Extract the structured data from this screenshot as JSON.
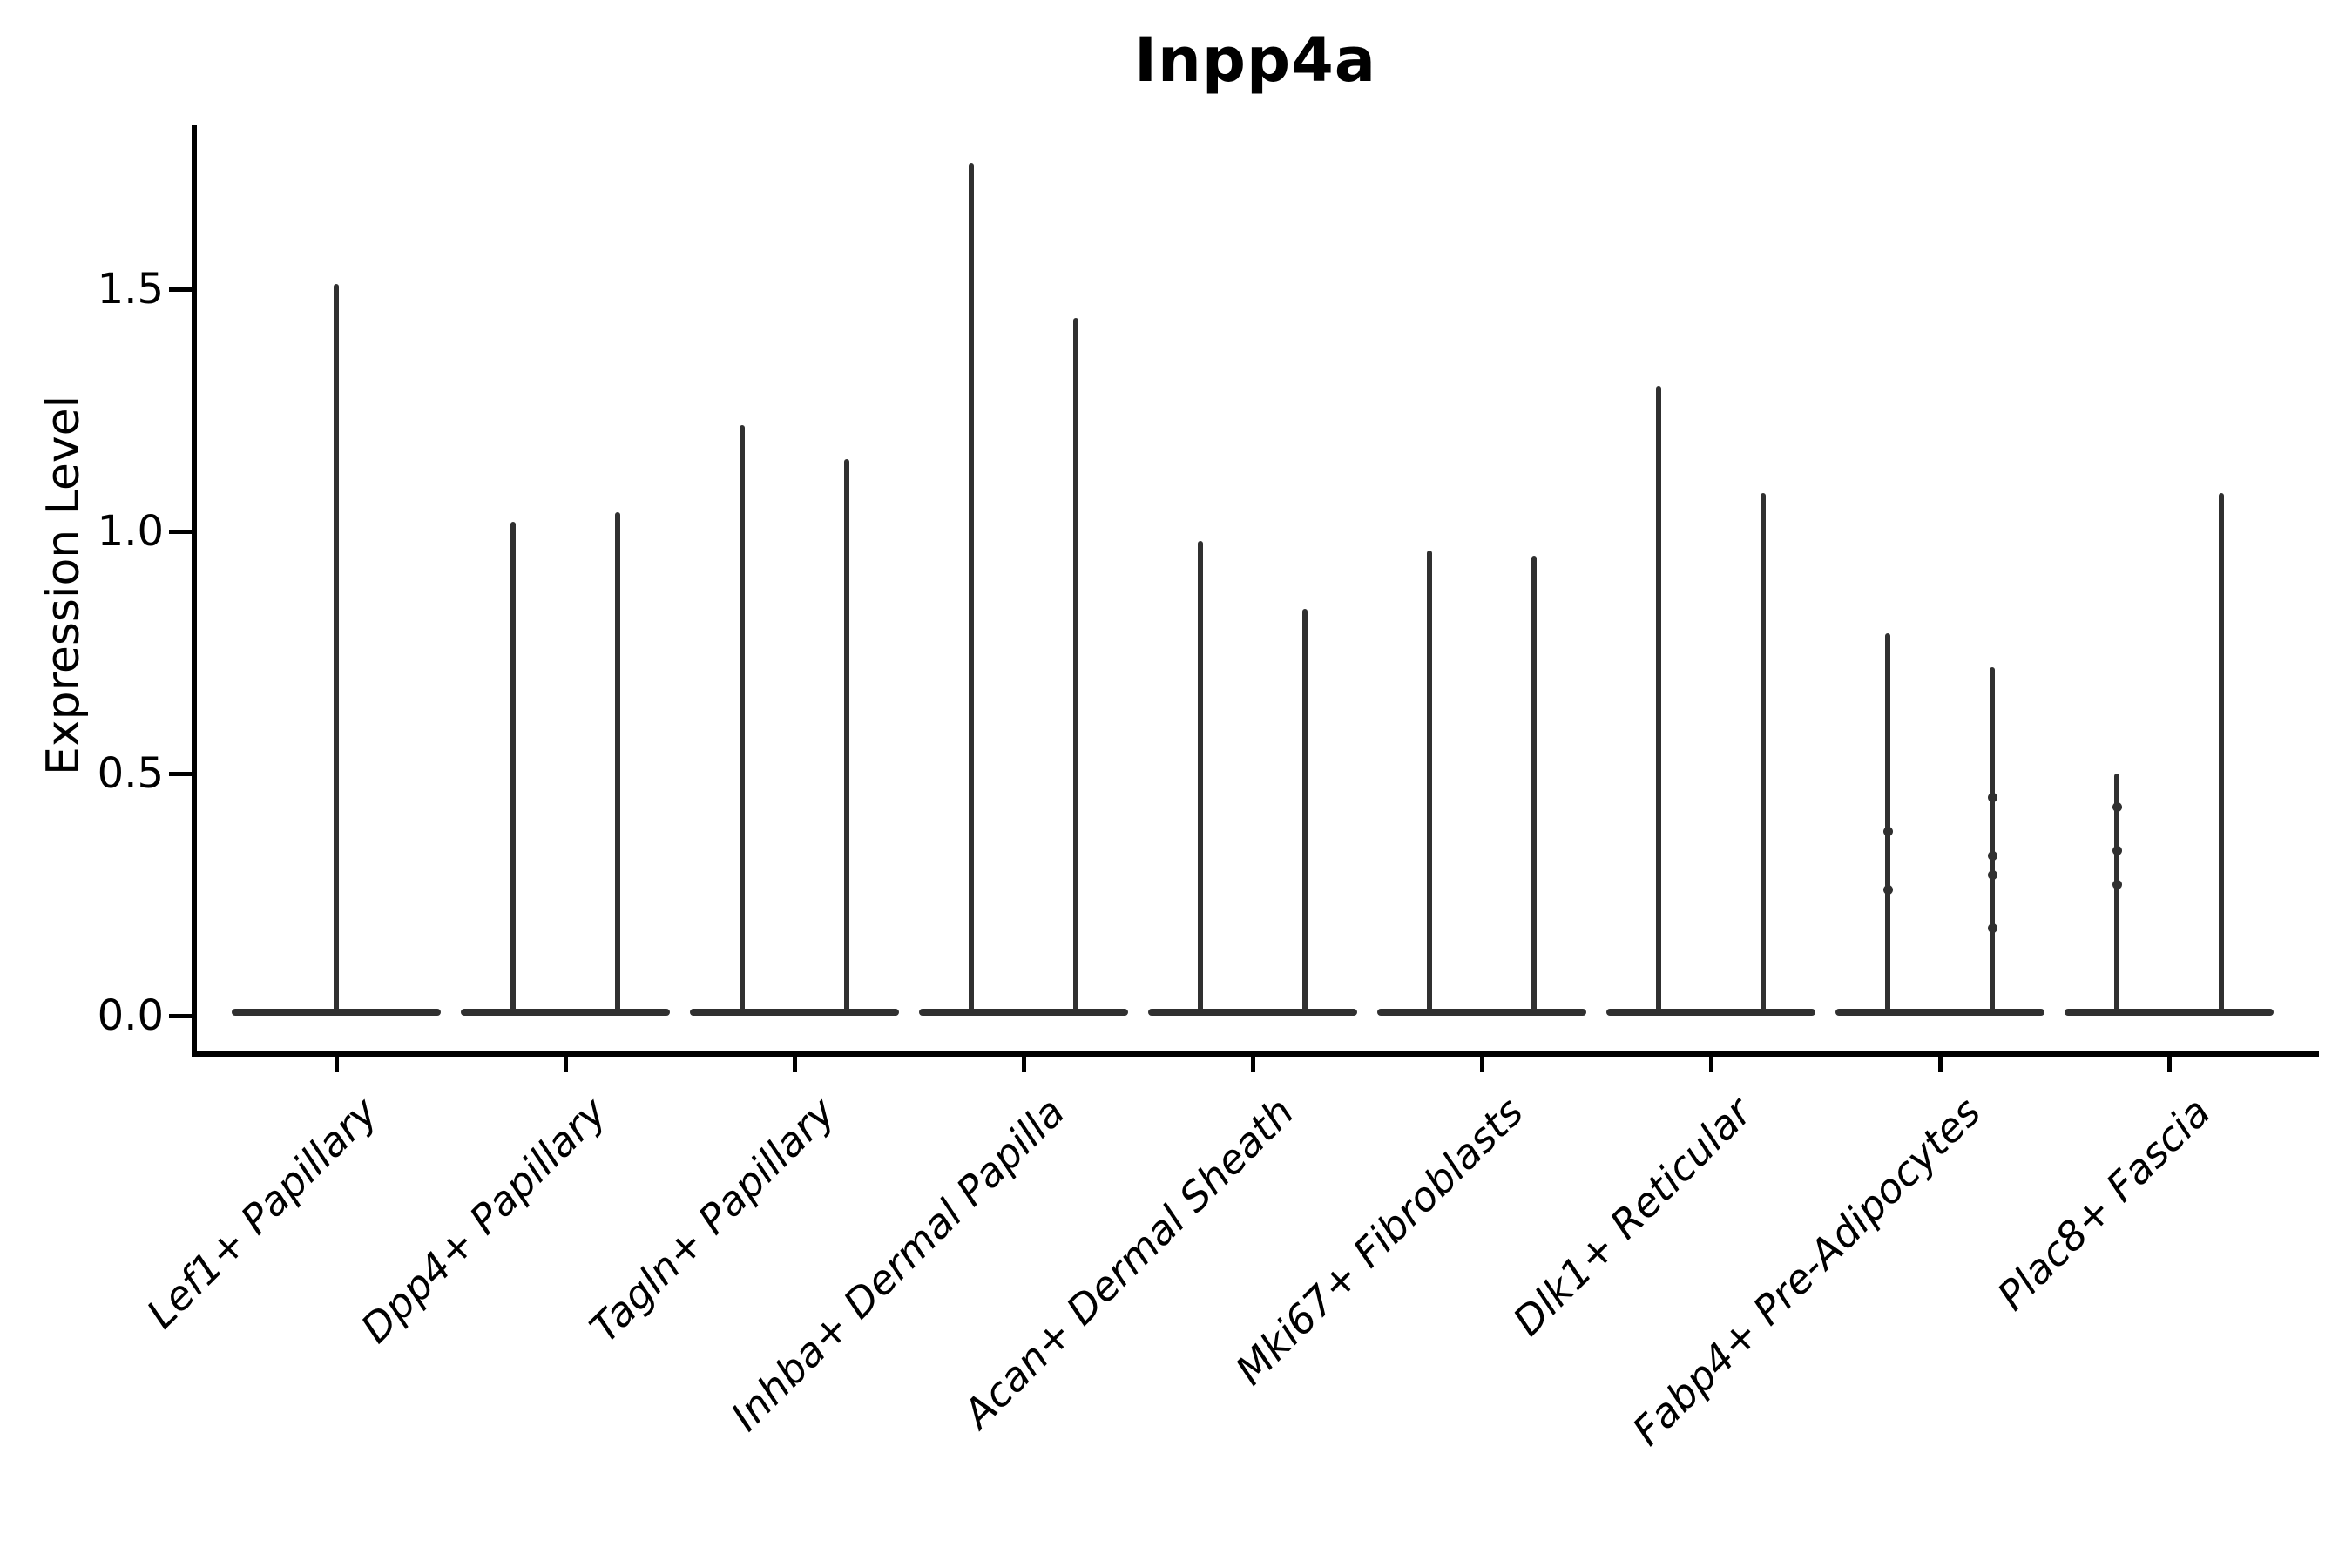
{
  "chart_data": {
    "type": "violin",
    "title": "Inpp4a",
    "ylabel": "Expression Level",
    "xlabel": "",
    "ylim": [
      -0.08,
      1.84
    ],
    "grid": false,
    "legend": "none",
    "yticks": [
      {
        "label": "0.0",
        "value": 0.0
      },
      {
        "label": "0.5",
        "value": 0.5
      },
      {
        "label": "1.0",
        "value": 1.0
      },
      {
        "label": "1.5",
        "value": 1.5
      }
    ],
    "categories": [
      {
        "label": "Lef1+ Papillary",
        "violins": [
          {
            "max": 1.51,
            "points": []
          }
        ]
      },
      {
        "label": "Dpp4+ Papillary",
        "violins": [
          {
            "max": 1.02,
            "points": []
          },
          {
            "max": 1.04,
            "points": []
          }
        ]
      },
      {
        "label": "Tagln+ Papillary",
        "violins": [
          {
            "max": 1.22,
            "points": []
          },
          {
            "max": 1.15,
            "points": []
          }
        ]
      },
      {
        "label": "Inhba+ Dermal Papilla",
        "violins": [
          {
            "max": 1.76,
            "points": []
          },
          {
            "max": 1.44,
            "points": []
          }
        ]
      },
      {
        "label": "Acan+ Dermal Sheath",
        "violins": [
          {
            "max": 0.98,
            "points": []
          },
          {
            "max": 0.84,
            "points": []
          }
        ]
      },
      {
        "label": "Mki67+ Fibroblasts",
        "violins": [
          {
            "max": 0.96,
            "points": []
          },
          {
            "max": 0.95,
            "points": []
          }
        ]
      },
      {
        "label": "Dlk1+ Reticular",
        "violins": [
          {
            "max": 1.3,
            "points": []
          },
          {
            "max": 1.08,
            "points": []
          }
        ]
      },
      {
        "label": "Fabp4+ Pre-Adipocytes",
        "violins": [
          {
            "max": 0.79,
            "points": [
              0.38,
              0.26
            ]
          },
          {
            "max": 0.72,
            "points": [
              0.45,
              0.33,
              0.29,
              0.18
            ]
          }
        ]
      },
      {
        "label": "Plac8+ Fascia",
        "violins": [
          {
            "max": 0.5,
            "points": [
              0.43,
              0.34,
              0.27
            ]
          },
          {
            "max": 1.08,
            "points": []
          }
        ]
      }
    ],
    "colors": {
      "violin": "#303030",
      "axis": "#000000",
      "text": "#000000",
      "background": "#ffffff"
    }
  }
}
